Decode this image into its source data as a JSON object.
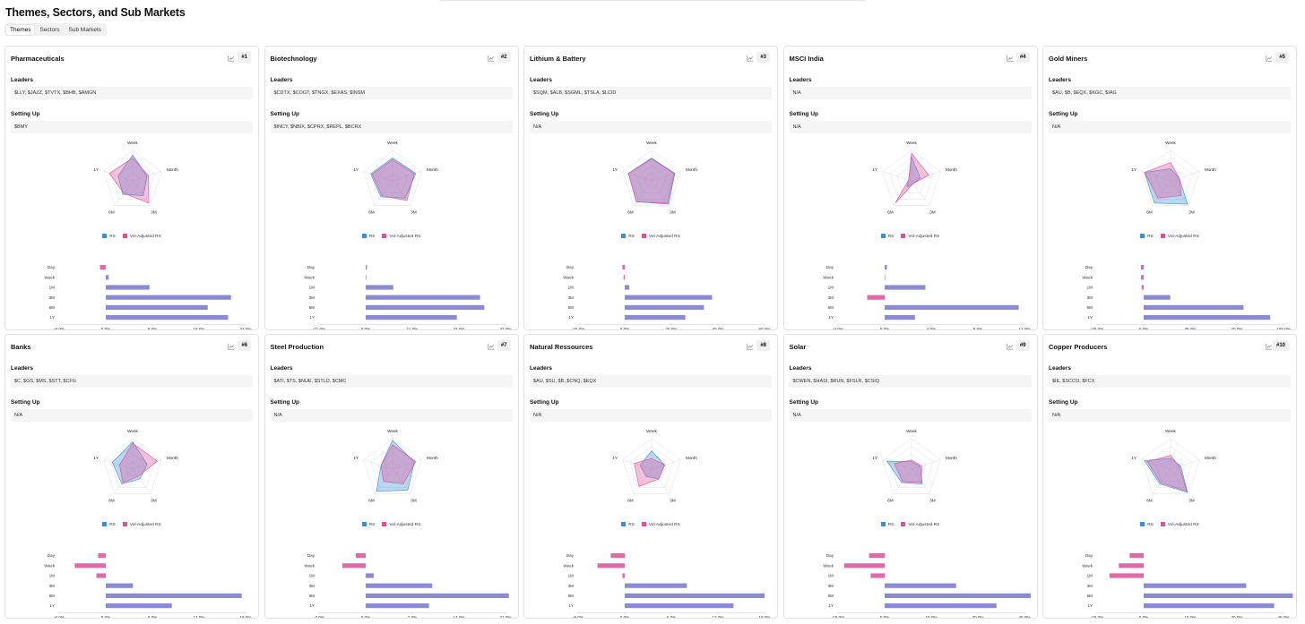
{
  "page": {
    "title": "Themes, Sectors, and Sub Markets"
  },
  "tabs": [
    {
      "label": "Themes",
      "active": true
    },
    {
      "label": "Sectors",
      "active": false
    },
    {
      "label": "Sub Markets",
      "active": false
    }
  ],
  "labels": {
    "leaders": "Leaders",
    "setting_up": "Setting Up",
    "legend_rs": "RS",
    "legend_vol": "Vol-Adjusted RS"
  },
  "radar_axes": [
    "Week",
    "Month",
    "3M",
    "6M",
    "1Y"
  ],
  "bar_labels": [
    "Day",
    "Week",
    "1M",
    "3M",
    "6M",
    "1Y"
  ],
  "colors": {
    "rs": "#3a8fd6",
    "vol": "#e0509a",
    "bar_pos": "#8b8bd3",
    "bar_neg": "#e06aa8"
  },
  "cards": [
    {
      "name": "Pharmaceuticals",
      "rank": "#1",
      "leaders": "$LLY, $JAZZ, $TVTX, $BHB, $AMGN",
      "setting_up": "$BMY",
      "radar": {
        "rs": [
          0.85,
          0.5,
          0.6,
          0.55,
          0.5
        ],
        "vol": [
          0.75,
          0.55,
          0.9,
          0.5,
          0.8
        ]
      },
      "chart_data": {
        "type": "bar",
        "categories": [
          "Day",
          "Week",
          "1M",
          "3M",
          "6M",
          "1Y"
        ],
        "values": [
          -1.0,
          0.5,
          7.5,
          21.5,
          17.5,
          21.0
        ],
        "ticks": [
          "-8.0%",
          "0.0%",
          "8.0%",
          "16.0%",
          "24.0%"
        ],
        "xlim": [
          -8,
          24
        ]
      }
    },
    {
      "name": "Biotechnology",
      "rank": "#2",
      "leaders": "$CDTX, $COGT, $TNGX, $EXAS, $INSM",
      "setting_up": "$INCY, $NBIX, $CPRX, $REPL, $BCRX",
      "radar": {
        "rs": [
          0.75,
          0.8,
          0.7,
          0.65,
          0.75
        ],
        "vol": [
          0.7,
          0.75,
          0.8,
          0.6,
          0.7
        ]
      },
      "chart_data": {
        "type": "bar",
        "categories": [
          "Day",
          "Week",
          "1M",
          "3M",
          "6M",
          "1Y"
        ],
        "values": [
          0.3,
          0.15,
          6.5,
          27.0,
          28.0,
          21.5
        ],
        "ticks": [
          "-11.0%",
          "0.0%",
          "11.0%",
          "22.0%",
          "33.0%"
        ],
        "xlim": [
          -11,
          33
        ]
      }
    },
    {
      "name": "Lithium & Battery",
      "rank": "#3",
      "leaders": "$SQM, $ALB, $SGML, $TSLA, $LCID",
      "setting_up": "N/A",
      "radar": {
        "rs": [
          0.75,
          0.8,
          0.95,
          0.85,
          0.8
        ],
        "vol": [
          0.72,
          0.78,
          0.9,
          0.85,
          0.8
        ]
      },
      "chart_data": {
        "type": "bar",
        "categories": [
          "Day",
          "Week",
          "1M",
          "3M",
          "6M",
          "1Y"
        ],
        "values": [
          -1.0,
          -0.5,
          2.0,
          37.5,
          34.0,
          26.0
        ],
        "ticks": [
          "-20.0%",
          "0.0%",
          "20.0%",
          "40.0%",
          "60.0%"
        ],
        "xlim": [
          -20,
          60
        ]
      }
    },
    {
      "name": "MSCI India",
      "rank": "#4",
      "leaders": "N/A",
      "setting_up": "N/A",
      "radar": {
        "rs": [
          0.8,
          0.3,
          0.1,
          0.25,
          0.1
        ],
        "vol": [
          0.9,
          0.6,
          0.1,
          0.9,
          0.1
        ]
      },
      "chart_data": {
        "type": "bar",
        "categories": [
          "Day",
          "Week",
          "1M",
          "3M",
          "6M",
          "1Y"
        ],
        "values": [
          0.2,
          0.05,
          3.5,
          -1.5,
          11.5,
          2.6
        ],
        "ticks": [
          "-4.0%",
          "0.0%",
          "4.0%",
          "8.0%",
          "12.0%"
        ],
        "xlim": [
          -4,
          12
        ]
      }
    },
    {
      "name": "Gold Miners",
      "rank": "#5",
      "leaders": "$AU, $B, $EQX, $KGC, $IAG",
      "setting_up": "N/A",
      "radar": {
        "rs": [
          0.4,
          0.3,
          0.95,
          0.9,
          0.9
        ],
        "vol": [
          0.6,
          0.3,
          0.6,
          0.7,
          0.9
        ]
      },
      "chart_data": {
        "type": "bar",
        "categories": [
          "Day",
          "Week",
          "1M",
          "3M",
          "6M",
          "1Y"
        ],
        "values": [
          -2.0,
          -2.0,
          -1.5,
          20.0,
          75.0,
          95.0
        ],
        "ticks": [
          "-35.0%",
          "0.0%",
          "35.0%",
          "70.0%",
          "105.0%"
        ],
        "xlim": [
          -35,
          105
        ]
      }
    },
    {
      "name": "Banks",
      "rank": "#6",
      "leaders": "$C, $GS, $MS, $STT, $CFG",
      "setting_up": "N/A",
      "radar": {
        "rs": [
          0.9,
          0.5,
          0.4,
          0.6,
          0.7
        ],
        "vol": [
          0.85,
          0.85,
          0.3,
          0.55,
          0.45
        ]
      },
      "chart_data": {
        "type": "bar",
        "categories": [
          "Day",
          "Week",
          "1M",
          "3M",
          "6M",
          "1Y"
        ],
        "values": [
          -1.0,
          -4.0,
          -1.2,
          3.5,
          17.5,
          8.5
        ],
        "ticks": [
          "-6.0%",
          "0.0%",
          "6.0%",
          "12.0%",
          "18.0%"
        ],
        "xlim": [
          -6,
          18
        ]
      }
    },
    {
      "name": "Steel Production",
      "rank": "#7",
      "leaders": "$ATI, $TS, $NUE, $STLD, $CMC",
      "setting_up": "N/A",
      "radar": {
        "rs": [
          0.95,
          0.75,
          0.85,
          0.9,
          0.4
        ],
        "vol": [
          0.8,
          0.8,
          0.6,
          0.5,
          0.4
        ]
      },
      "chart_data": {
        "type": "bar",
        "categories": [
          "Day",
          "Week",
          "1M",
          "3M",
          "6M",
          "1Y"
        ],
        "values": [
          -1.5,
          -3.5,
          1.2,
          10.0,
          21.5,
          9.5
        ],
        "ticks": [
          "-7.0%",
          "0.0%",
          "7.0%",
          "14.0%",
          "21.0%"
        ],
        "xlim": [
          -7,
          21
        ]
      }
    },
    {
      "name": "Natural Ressources",
      "rank": "#8",
      "leaders": "$AU, $SU, $B, $CNQ, $EQX",
      "setting_up": "N/A",
      "radar": {
        "rs": [
          0.6,
          0.45,
          0.4,
          0.3,
          0.4
        ],
        "vol": [
          0.35,
          0.45,
          0.4,
          0.7,
          0.6
        ]
      },
      "chart_data": {
        "type": "bar",
        "categories": [
          "Day",
          "Week",
          "1M",
          "3M",
          "6M",
          "1Y"
        ],
        "values": [
          -1.8,
          -3.5,
          -0.3,
          8.0,
          18.0,
          14.0
        ],
        "ticks": [
          "-6.0%",
          "0.0%",
          "6.0%",
          "12.0%",
          "18.0%"
        ],
        "xlim": [
          -6,
          18
        ]
      }
    },
    {
      "name": "Solar",
      "rank": "#9",
      "leaders": "$CWEN, $HASI, $RUN, $FSLR, $CSIQ",
      "setting_up": "N/A",
      "radar": {
        "rs": [
          0.25,
          0.3,
          0.6,
          0.55,
          0.85
        ],
        "vol": [
          0.3,
          0.35,
          0.55,
          0.5,
          0.6
        ]
      },
      "chart_data": {
        "type": "bar",
        "categories": [
          "Day",
          "Week",
          "1M",
          "3M",
          "6M",
          "1Y"
        ],
        "values": [
          -5.0,
          -13.0,
          -4.5,
          23.0,
          47.0,
          36.0
        ],
        "ticks": [
          "-15.0%",
          "0.0%",
          "15.0%",
          "30.0%",
          "45.0%"
        ],
        "xlim": [
          -15,
          45
        ]
      }
    },
    {
      "name": "Copper Producers",
      "rank": "#10",
      "leaders": "$IE, $SCCO, $FCX",
      "setting_up": "N/A",
      "radar": {
        "rs": [
          0.35,
          0.35,
          0.95,
          0.6,
          0.9
        ],
        "vol": [
          0.45,
          0.3,
          0.9,
          0.55,
          0.8
        ]
      },
      "chart_data": {
        "type": "bar",
        "categories": [
          "Day",
          "Week",
          "1M",
          "3M",
          "6M",
          "1Y"
        ],
        "values": [
          -4.5,
          -8.0,
          -11.0,
          33.0,
          48.0,
          42.0
        ],
        "ticks": [
          "-15.0%",
          "0.0%",
          "15.0%",
          "30.0%",
          "45.0%"
        ],
        "xlim": [
          -15,
          45
        ]
      }
    }
  ]
}
